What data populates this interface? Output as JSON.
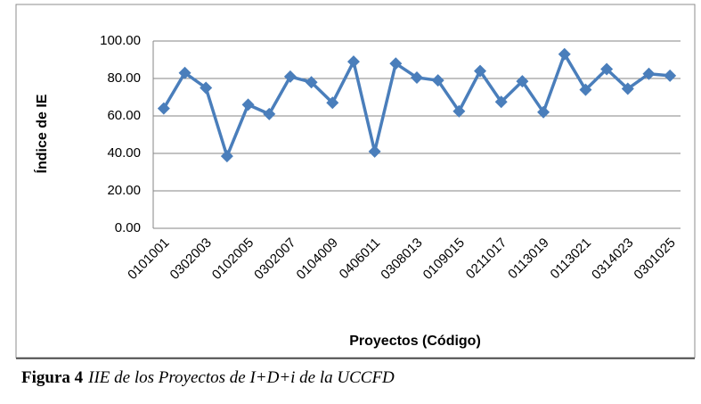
{
  "chart_data": {
    "type": "line",
    "x_label": "Proyectos (Código)",
    "y_label": "Índice de IE",
    "categories": [
      "0101001",
      null,
      "0302003",
      null,
      "0102005",
      null,
      "0302007",
      null,
      "0104009",
      null,
      "0406011",
      null,
      "0308013",
      null,
      "0109015",
      null,
      "0211017",
      null,
      "0113019",
      null,
      "0113021",
      null,
      "0314023",
      null,
      "0301025"
    ],
    "series": [
      {
        "color": "#4a7ebb",
        "values": [
          64,
          83,
          75,
          38.5,
          66,
          61,
          81,
          78,
          67,
          89,
          41,
          88,
          80.5,
          79,
          62.5,
          84,
          67.5,
          78.5,
          62,
          93,
          74,
          85,
          74.5,
          82.5,
          81.5
        ]
      }
    ],
    "ylim": [
      0,
      100
    ],
    "yticks": [
      {
        "value": 0,
        "label": "0.00"
      },
      {
        "value": 20,
        "label": "20.00"
      },
      {
        "value": 40,
        "label": "40.00"
      },
      {
        "value": 60,
        "label": "60.00"
      },
      {
        "value": 80,
        "label": "80.00"
      },
      {
        "value": 100,
        "label": "100.00"
      }
    ],
    "grid": true
  },
  "caption": {
    "label": "Figura 4",
    "text": "IIE de los Proyectos de I+D+i de la UCCFD"
  }
}
